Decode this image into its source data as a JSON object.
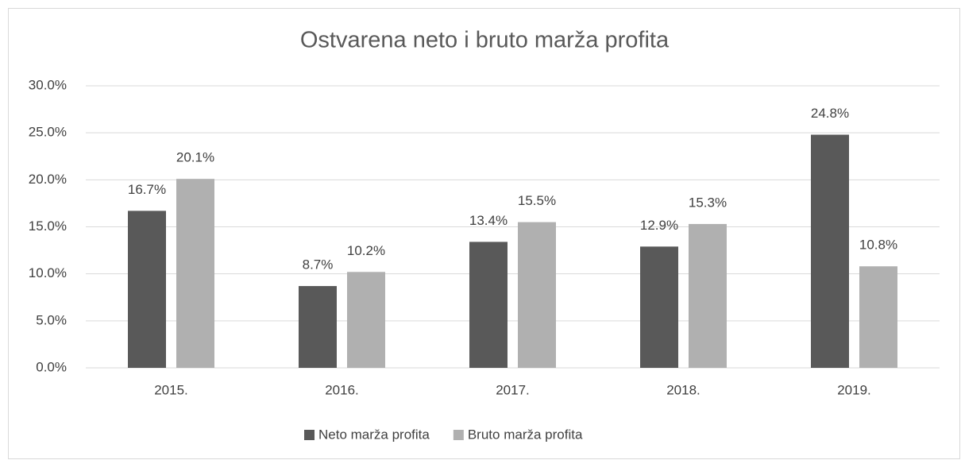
{
  "chart_data": {
    "type": "bar",
    "title": "Ostvarena neto i bruto marža profita",
    "categories": [
      "2015.",
      "2016.",
      "2017.",
      "2018.",
      "2019."
    ],
    "series": [
      {
        "name": "Neto marža profita",
        "color": "#595959",
        "values": [
          16.7,
          8.7,
          13.4,
          12.9,
          24.8
        ],
        "value_labels": [
          "16.7%",
          "8.7%",
          "13.4%",
          "12.9%",
          "24.8%"
        ]
      },
      {
        "name": "Bruto marža profita",
        "color": "#b0b0b0",
        "values": [
          20.1,
          10.2,
          15.5,
          15.3,
          10.8
        ],
        "value_labels": [
          "20.1%",
          "10.2%",
          "15.5%",
          "15.3%",
          "10.8%"
        ]
      }
    ],
    "ylim": [
      0,
      30
    ],
    "yticks": [
      {
        "value": 0,
        "label": "0.0%"
      },
      {
        "value": 5,
        "label": "5.0%"
      },
      {
        "value": 10,
        "label": "10.0%"
      },
      {
        "value": 15,
        "label": "15.0%"
      },
      {
        "value": 20,
        "label": "20.0%"
      },
      {
        "value": 25,
        "label": "25.0%"
      },
      {
        "value": 30,
        "label": "30.0%"
      }
    ],
    "grid": true,
    "legend": "bottom"
  }
}
